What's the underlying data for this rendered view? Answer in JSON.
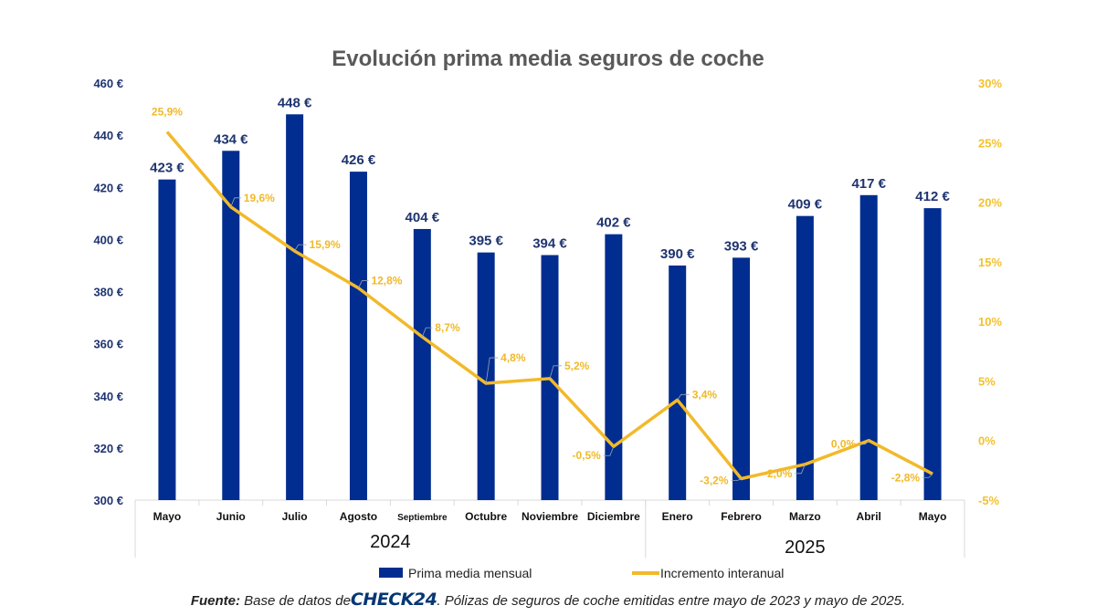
{
  "chart_data": {
    "type": "bar+line",
    "title": "Evolución prima media seguros de coche",
    "categories": [
      "Mayo",
      "Junio",
      "Julio",
      "Agosto",
      "Septiembre",
      "Octubre",
      "Noviembre",
      "Diciembre",
      "Enero",
      "Febrero",
      "Marzo",
      "Abril",
      "Mayo"
    ],
    "year_groups": [
      {
        "label": "2024",
        "count": 8
      },
      {
        "label": "2025",
        "count": 5
      }
    ],
    "series": [
      {
        "name": "Prima media mensual",
        "type": "bar",
        "axis": "left",
        "color": "#002d8f",
        "values": [
          423,
          434,
          448,
          426,
          404,
          395,
          394,
          402,
          390,
          393,
          409,
          417,
          412
        ],
        "labels": [
          "423 €",
          "434 €",
          "448 €",
          "426 €",
          "404 €",
          "395 €",
          "394 €",
          "402 €",
          "390 €",
          "393 €",
          "409 €",
          "417 €",
          "412 €"
        ]
      },
      {
        "name": "Incremento interanual",
        "type": "line",
        "axis": "right",
        "color": "#f2b92a",
        "values": [
          25.9,
          19.6,
          15.9,
          12.8,
          8.7,
          4.8,
          5.2,
          -0.5,
          3.4,
          -3.2,
          -2.0,
          0.0,
          -2.8
        ],
        "labels": [
          "25,9%",
          "19,6%",
          "15,9%",
          "12,8%",
          "8,7%",
          "4,8%",
          "5,2%",
          "-0,5%",
          "3,4%",
          "-3,2%",
          "-2,0%",
          "0,0%",
          "-2,8%"
        ]
      }
    ],
    "y_left": {
      "range": [
        300,
        460
      ],
      "ticks": [
        300,
        320,
        340,
        360,
        380,
        400,
        420,
        440,
        460
      ],
      "tick_labels": [
        "300 €",
        "320 €",
        "340 €",
        "360 €",
        "380 €",
        "400 €",
        "420 €",
        "440 €",
        "460 €"
      ]
    },
    "y_right": {
      "range": [
        -5,
        30
      ],
      "ticks": [
        -5,
        0,
        5,
        10,
        15,
        20,
        25,
        30
      ],
      "tick_labels": [
        "-5%",
        "0%",
        "5%",
        "10%",
        "15%",
        "20%",
        "25%",
        "30%"
      ]
    },
    "grid": false,
    "legend": {
      "placement": "bottom",
      "entries": [
        "Prima media mensual",
        "Incremento interanual"
      ]
    }
  },
  "footer": {
    "source_label": "Fuente:",
    "source_prefix": "Base de datos de",
    "brand": "CHECK24",
    "source_suffix": ". Pólizas de seguros de coche emitidas entre mayo de 2023 y mayo de 2025."
  }
}
